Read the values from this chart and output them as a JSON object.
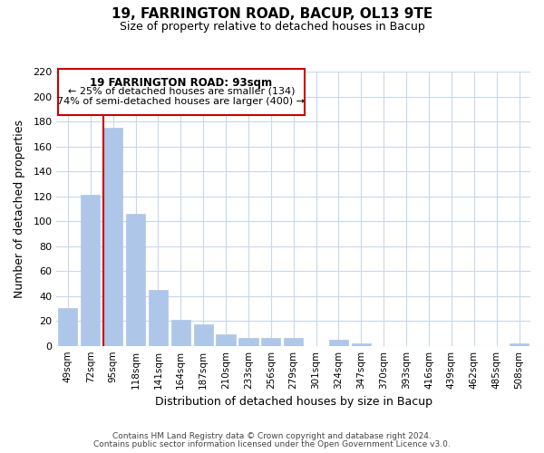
{
  "title": "19, FARRINGTON ROAD, BACUP, OL13 9TE",
  "subtitle": "Size of property relative to detached houses in Bacup",
  "xlabel": "Distribution of detached houses by size in Bacup",
  "ylabel": "Number of detached properties",
  "categories": [
    "49sqm",
    "72sqm",
    "95sqm",
    "118sqm",
    "141sqm",
    "164sqm",
    "187sqm",
    "210sqm",
    "233sqm",
    "256sqm",
    "279sqm",
    "301sqm",
    "324sqm",
    "347sqm",
    "370sqm",
    "393sqm",
    "416sqm",
    "439sqm",
    "462sqm",
    "485sqm",
    "508sqm"
  ],
  "values": [
    30,
    121,
    175,
    106,
    45,
    21,
    17,
    9,
    6,
    6,
    6,
    0,
    5,
    2,
    0,
    0,
    0,
    0,
    0,
    0,
    2
  ],
  "bar_color": "#aec6e8",
  "bar_edge_color": "#aec6e8",
  "highlight_line_color": "#cc0000",
  "annotation_title": "19 FARRINGTON ROAD: 93sqm",
  "annotation_line1": "← 25% of detached houses are smaller (134)",
  "annotation_line2": "74% of semi-detached houses are larger (400) →",
  "annotation_box_color": "#ffffff",
  "annotation_box_edge_color": "#cc0000",
  "ylim": [
    0,
    220
  ],
  "yticks": [
    0,
    20,
    40,
    60,
    80,
    100,
    120,
    140,
    160,
    180,
    200,
    220
  ],
  "footer1": "Contains HM Land Registry data © Crown copyright and database right 2024.",
  "footer2": "Contains public sector information licensed under the Open Government Licence v3.0.",
  "background_color": "#ffffff",
  "grid_color": "#c8d8ea"
}
